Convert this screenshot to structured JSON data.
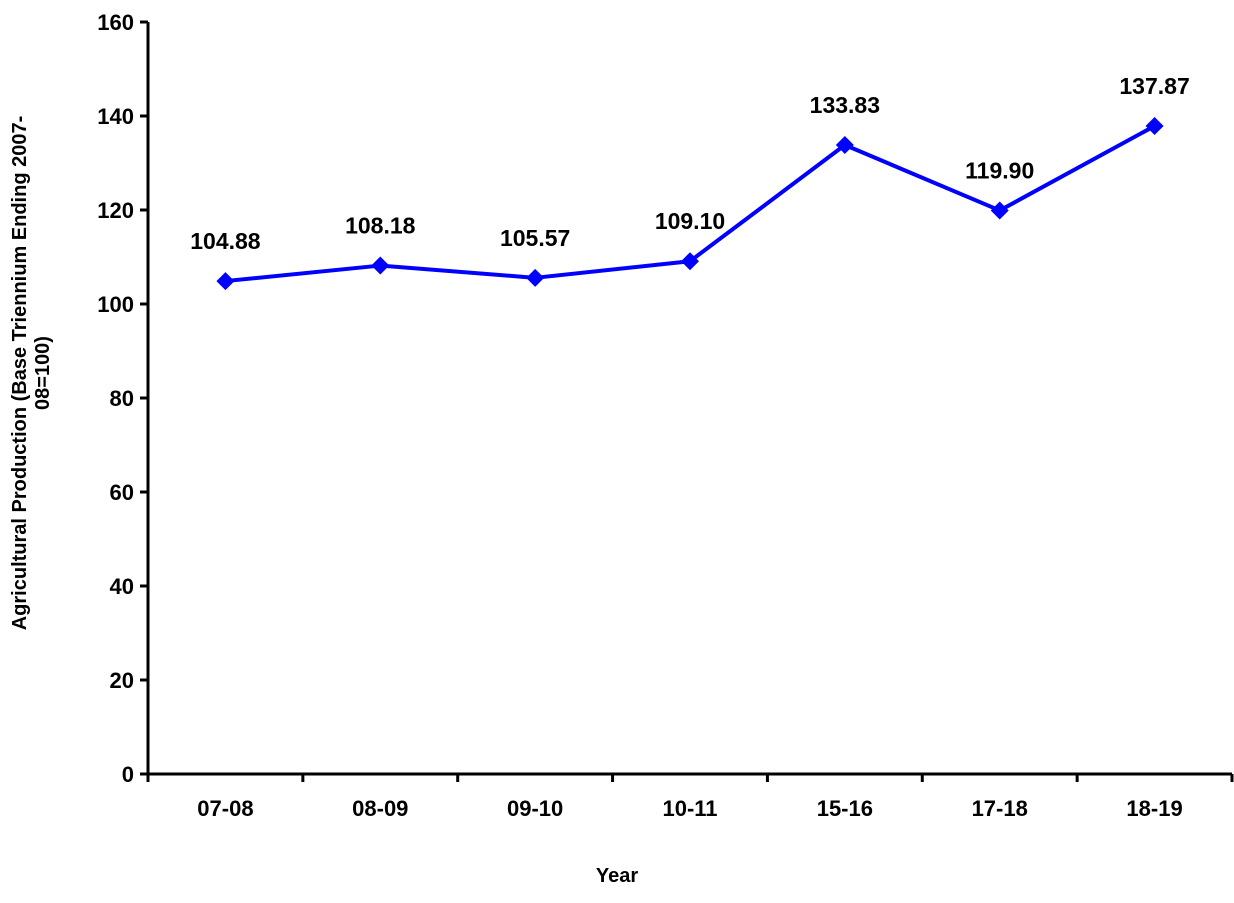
{
  "chart_data": {
    "type": "line",
    "title": "",
    "xlabel": "Year",
    "ylabel": [
      "Agricultural Production (Base Triennium Ending 2007-",
      "08=100)"
    ],
    "categories": [
      "07-08",
      "08-09",
      "09-10",
      "10-11",
      "15-16",
      "17-18",
      "18-19"
    ],
    "series": [
      {
        "values": [
          104.88,
          108.18,
          105.57,
          109.1,
          133.83,
          119.9,
          137.87
        ],
        "labels": [
          "104.88",
          "108.18",
          "105.57",
          "109.10",
          "133.83",
          "119.90",
          "137.87"
        ],
        "color": "#0000FF",
        "marker": "diamond"
      }
    ],
    "ylim": [
      0,
      160
    ],
    "yticks": [
      "0",
      "20",
      "40",
      "60",
      "80",
      "100",
      "120",
      "140",
      "160"
    ],
    "grid": false,
    "legend": "none"
  }
}
